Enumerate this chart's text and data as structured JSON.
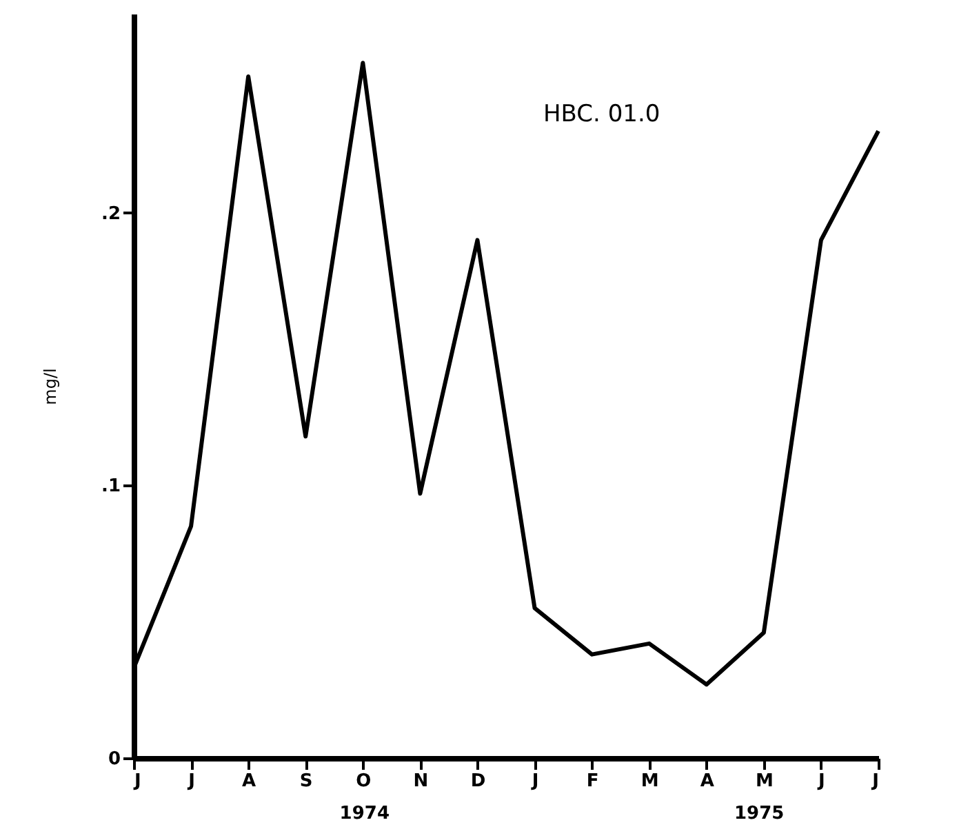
{
  "chart_data": {
    "type": "line",
    "title": "HBC. 01.0",
    "ylabel": "mg/l",
    "categories": [
      "J",
      "J",
      "A",
      "S",
      "O",
      "N",
      "D",
      "J",
      "F",
      "M",
      "A",
      "M",
      "J",
      "J"
    ],
    "series": [
      {
        "color": "#000000",
        "values": [
          0.033,
          0.085,
          0.25,
          0.118,
          0.255,
          0.097,
          0.19,
          0.055,
          0.038,
          0.042,
          0.027,
          0.046,
          0.19,
          0.23
        ]
      }
    ],
    "ylim": [
      0,
      0.273
    ],
    "yticks": [
      0,
      {
        "value": 0.1,
        "label": ".1"
      },
      {
        "value": 0.2,
        "label": ".2"
      }
    ],
    "annotations": [
      "1974",
      "1975"
    ],
    "grid": false,
    "marker": "none",
    "line_style": "solid"
  }
}
